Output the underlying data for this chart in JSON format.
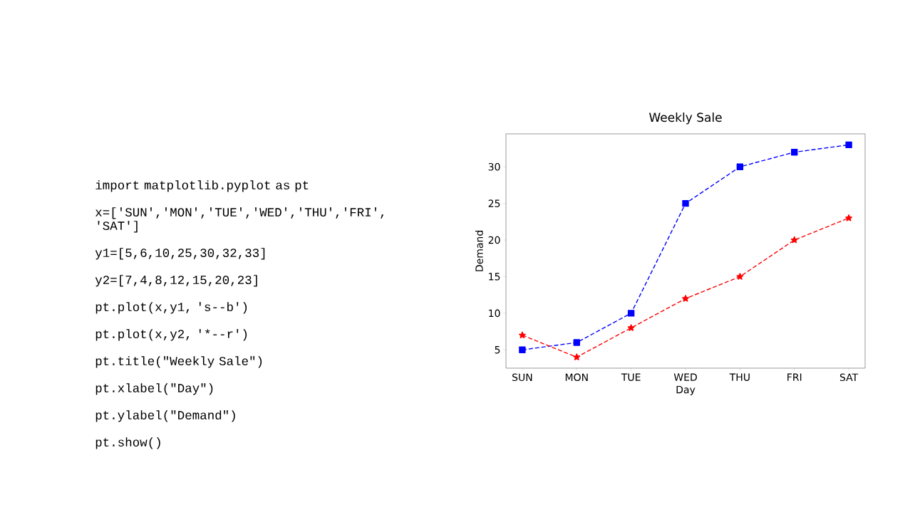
{
  "chart_data": {
    "type": "line",
    "title": "Weekly Sale",
    "xlabel": "Day",
    "ylabel": "Demand",
    "categories": [
      "SUN",
      "MON",
      "TUE",
      "WED",
      "THU",
      "FRI",
      "SAT"
    ],
    "series": [
      {
        "color": "#0000ff",
        "marker": "square",
        "line_style": "dashed",
        "values": [
          5,
          6,
          10,
          25,
          30,
          32,
          33
        ]
      },
      {
        "color": "#ff0000",
        "marker": "star",
        "line_style": "dashed",
        "values": [
          7,
          4,
          8,
          12,
          15,
          20,
          23
        ]
      }
    ],
    "ylim": [
      2.5,
      34.5
    ],
    "yticks": [
      5,
      10,
      15,
      20,
      25,
      30
    ],
    "grid": false,
    "annotations": [
      "import matplotlib.pyplot as pt",
      "x=['SUN','MON','TUE','WED','THU','FRI', 'SAT']",
      "y1=[5,6,10,25,30,32,33]",
      "y2=[7,4,8,12,15,20,23]",
      "pt.plot(x,y1, 's--b')",
      "pt.plot(x,y2, '*--r')",
      "pt.title(\"Weekly Sale\")",
      "pt.xlabel(\"Day\")",
      "pt.ylabel(\"Demand\")",
      "pt.show()"
    ]
  }
}
